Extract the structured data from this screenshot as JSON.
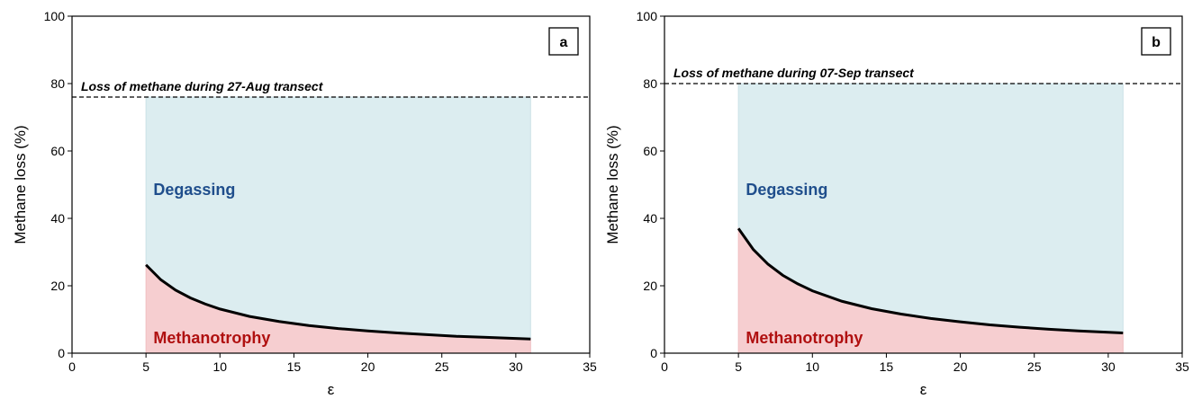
{
  "chart_data": [
    {
      "type": "area",
      "panel_label": "a",
      "xlabel": "ε",
      "ylabel": "Methane loss (%)",
      "xlim": [
        0,
        35
      ],
      "ylim": [
        0,
        100
      ],
      "xticks": [
        0,
        5,
        10,
        15,
        20,
        25,
        30,
        35
      ],
      "yticks": [
        0,
        20,
        40,
        60,
        80,
        100
      ],
      "grid": false,
      "total_loss": 76,
      "total_loss_label": "Loss of methane during 27-Aug transect",
      "regions": {
        "upper": "Degassing",
        "lower": "Methanotrophy"
      },
      "curve": {
        "x": [
          5,
          6,
          7,
          8,
          9,
          10,
          12,
          14,
          16,
          18,
          20,
          22,
          24,
          26,
          28,
          31
        ],
        "y": [
          26.2,
          21.8,
          18.7,
          16.4,
          14.6,
          13.1,
          10.9,
          9.4,
          8.2,
          7.3,
          6.6,
          6.0,
          5.5,
          5.0,
          4.7,
          4.2
        ]
      }
    },
    {
      "type": "area",
      "panel_label": "b",
      "xlabel": "ε",
      "ylabel": "Methane loss (%)",
      "xlim": [
        0,
        35
      ],
      "ylim": [
        0,
        100
      ],
      "xticks": [
        0,
        5,
        10,
        15,
        20,
        25,
        30,
        35
      ],
      "yticks": [
        0,
        20,
        40,
        60,
        80,
        100
      ],
      "grid": false,
      "total_loss": 80,
      "total_loss_label": "Loss of methane during 07-Sep transect",
      "regions": {
        "upper": "Degassing",
        "lower": "Methanotrophy"
      },
      "curve": {
        "x": [
          5,
          6,
          7,
          8,
          9,
          10,
          12,
          14,
          16,
          18,
          20,
          22,
          24,
          26,
          28,
          31
        ],
        "y": [
          37.0,
          30.8,
          26.4,
          23.1,
          20.6,
          18.5,
          15.4,
          13.2,
          11.6,
          10.3,
          9.3,
          8.4,
          7.7,
          7.1,
          6.6,
          6.0
        ]
      }
    }
  ]
}
